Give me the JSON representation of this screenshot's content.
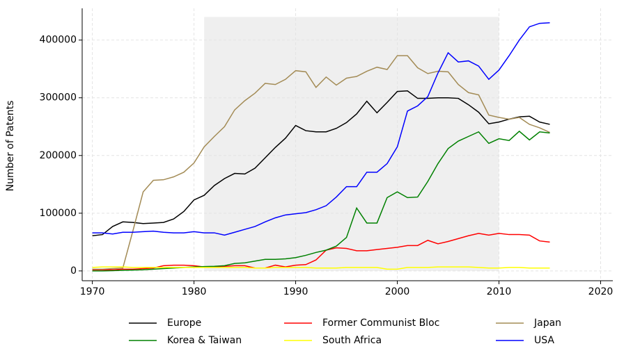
{
  "chart_data": {
    "type": "line",
    "y_label": "Number of Patents",
    "x": [
      1970,
      1971,
      1972,
      1973,
      1974,
      1975,
      1976,
      1977,
      1978,
      1979,
      1980,
      1981,
      1982,
      1983,
      1984,
      1985,
      1986,
      1987,
      1988,
      1989,
      1990,
      1991,
      1992,
      1993,
      1994,
      1995,
      1996,
      1997,
      1998,
      1999,
      2000,
      2001,
      2002,
      2003,
      2004,
      2005,
      2006,
      2007,
      2008,
      2009,
      2010,
      2011,
      2012,
      2013,
      2014,
      2015
    ],
    "series": [
      {
        "name": "Europe",
        "color": "#000000",
        "values": [
          61000,
          63000,
          77000,
          85000,
          84000,
          82000,
          83000,
          84000,
          90000,
          103000,
          123000,
          131000,
          148000,
          160000,
          169000,
          168000,
          178000,
          196000,
          214000,
          230000,
          252000,
          243000,
          241000,
          241000,
          247000,
          257000,
          272000,
          294000,
          274000,
          292000,
          311000,
          312000,
          299000,
          299000,
          300000,
          300000,
          299000,
          288000,
          275000,
          255000,
          258000,
          263000,
          267000,
          268000,
          258000,
          254000
        ]
      },
      {
        "name": "Former Communist Bloc",
        "color": "#ff0000",
        "values": [
          2000,
          2000,
          2000,
          3000,
          3000,
          4000,
          5000,
          9000,
          10000,
          10000,
          9000,
          7000,
          7000,
          8000,
          9000,
          9000,
          5000,
          5000,
          10000,
          7000,
          10000,
          11000,
          19000,
          36000,
          40000,
          39000,
          35000,
          35000,
          37000,
          39000,
          41000,
          44000,
          44000,
          53000,
          47000,
          51000,
          56000,
          61000,
          65000,
          62000,
          65000,
          63000,
          63000,
          62000,
          52000,
          50000
        ]
      },
      {
        "name": "Japan",
        "color": "#a38b55",
        "values": [
          3000,
          3000,
          4000,
          5000,
          70000,
          137000,
          157000,
          158000,
          163000,
          171000,
          187000,
          215000,
          233000,
          250000,
          279000,
          295000,
          308000,
          325000,
          323000,
          332000,
          347000,
          345000,
          318000,
          336000,
          322000,
          334000,
          337000,
          346000,
          353000,
          349000,
          373000,
          373000,
          352000,
          342000,
          346000,
          345000,
          323000,
          309000,
          305000,
          270000,
          266000,
          263000,
          266000,
          254000,
          248000,
          240000
        ]
      },
      {
        "name": "Korea & Taiwan",
        "color": "#008000",
        "values": [
          0,
          0,
          500,
          1000,
          1500,
          2000,
          3000,
          4000,
          5000,
          6000,
          7000,
          7500,
          8000,
          9000,
          13000,
          14000,
          17000,
          20000,
          20000,
          21000,
          23000,
          27000,
          32000,
          36000,
          43000,
          58000,
          109000,
          83000,
          83000,
          127000,
          137000,
          127000,
          128000,
          155000,
          186000,
          212000,
          225000,
          233000,
          241000,
          221000,
          229000,
          226000,
          242000,
          227000,
          241000,
          239000
        ]
      },
      {
        "name": "South Africa",
        "color": "#ffff00",
        "values": [
          6000,
          7000,
          7000,
          7000,
          6000,
          6000,
          6000,
          6000,
          6000,
          6000,
          6000,
          6000,
          6000,
          6000,
          6000,
          6000,
          5000,
          5000,
          6000,
          6000,
          6000,
          6000,
          5000,
          5000,
          5000,
          6000,
          6000,
          6000,
          6000,
          3000,
          3000,
          6000,
          6000,
          6000,
          7000,
          7000,
          7000,
          7000,
          6000,
          5000,
          5000,
          6000,
          6000,
          5000,
          5000,
          5000
        ]
      },
      {
        "name": "USA",
        "color": "#0000ff",
        "values": [
          66000,
          66000,
          64000,
          67000,
          67000,
          68000,
          69000,
          67000,
          66000,
          66000,
          68000,
          66000,
          66000,
          62000,
          67000,
          72000,
          77000,
          85000,
          92000,
          97000,
          99000,
          101000,
          106000,
          113000,
          128000,
          146000,
          146000,
          171000,
          171000,
          186000,
          215000,
          277000,
          286000,
          302000,
          343000,
          378000,
          362000,
          364000,
          355000,
          332000,
          348000,
          373000,
          400000,
          423000,
          429000,
          430000
        ]
      }
    ],
    "xlim": [
      1969,
      2021.2
    ],
    "ylim": [
      -17000,
      455000
    ],
    "xticks": [
      1970,
      1980,
      1990,
      2000,
      2010,
      2020
    ],
    "yticks": [
      0,
      100000,
      200000,
      300000,
      400000
    ],
    "shaded_region": {
      "x": [
        1981,
        2010
      ],
      "y": [
        0,
        440000
      ],
      "color": "#efefef"
    },
    "grid": true,
    "legend": "bottom"
  }
}
